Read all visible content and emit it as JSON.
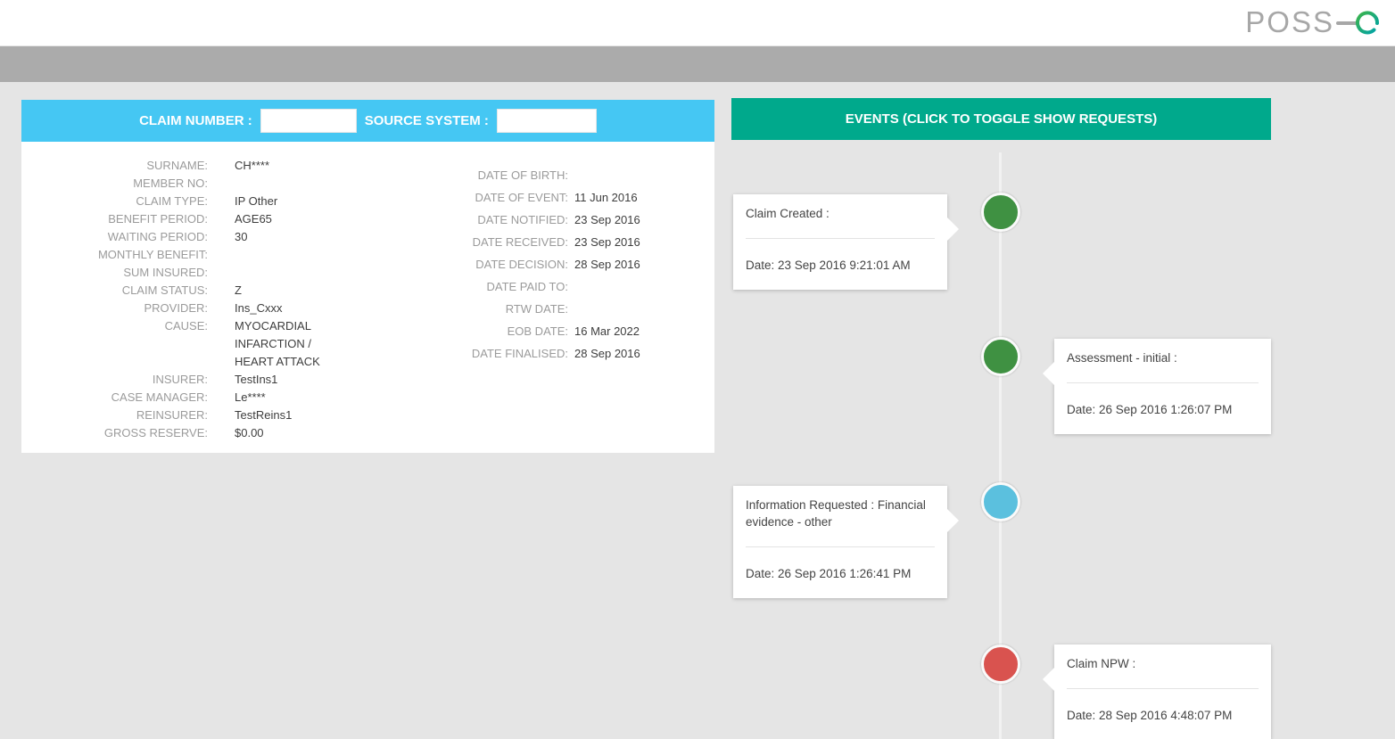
{
  "brand": {
    "wordmark": "POSS",
    "accent_letter": "e"
  },
  "claim_panel": {
    "header": {
      "claim_number_label": "CLAIM NUMBER :",
      "claim_number_value": "",
      "source_system_label": "SOURCE SYSTEM :",
      "source_system_value": ""
    },
    "details_left": [
      {
        "label": "SURNAME:",
        "value": "CH****"
      },
      {
        "label": "MEMBER NO:",
        "value": ""
      },
      {
        "label": "CLAIM TYPE:",
        "value": "IP Other"
      },
      {
        "label": "BENEFIT PERIOD:",
        "value": "AGE65"
      },
      {
        "label": "WAITING PERIOD:",
        "value": "30"
      },
      {
        "label": "MONTHLY BENEFIT:",
        "value": ""
      },
      {
        "label": "SUM INSURED:",
        "value": ""
      },
      {
        "label": "CLAIM STATUS:",
        "value": "Z"
      },
      {
        "label": "PROVIDER:",
        "value": "Ins_Cxxx"
      },
      {
        "label": "CAUSE:",
        "value": "MYOCARDIAL INFARCTION / HEART ATTACK"
      },
      {
        "label": "INSURER:",
        "value": "TestIns1"
      },
      {
        "label": "CASE MANAGER:",
        "value": "Le****"
      },
      {
        "label": "REINSURER:",
        "value": "TestReins1"
      },
      {
        "label": "GROSS RESERVE:",
        "value": "$0.00"
      }
    ],
    "details_right": [
      {
        "label": "DATE OF BIRTH:",
        "value": ""
      },
      {
        "label": "DATE OF EVENT:",
        "value": "11 Jun 2016"
      },
      {
        "label": "DATE NOTIFIED:",
        "value": "23 Sep 2016"
      },
      {
        "label": "DATE RECEIVED:",
        "value": "23 Sep 2016"
      },
      {
        "label": "DATE DECISION:",
        "value": "28 Sep 2016"
      },
      {
        "label": "DATE PAID TO:",
        "value": ""
      },
      {
        "label": "RTW DATE:",
        "value": ""
      },
      {
        "label": "EOB DATE:",
        "value": "16 Mar 2022"
      },
      {
        "label": "DATE FINALISED:",
        "value": "28 Sep 2016"
      }
    ]
  },
  "events_panel": {
    "header": "EVENTS (CLICK TO TOGGLE SHOW REQUESTS)",
    "events": [
      {
        "title": "Claim Created :",
        "date": "Date: 23 Sep 2016 9:21:01 AM",
        "status_color": "#3f9142",
        "side": "left"
      },
      {
        "title": "Assessment - initial :",
        "date": "Date: 26 Sep 2016 1:26:07 PM",
        "status_color": "#3f9142",
        "side": "right"
      },
      {
        "title": "Information Requested : Financial evidence - other",
        "date": "Date: 26 Sep 2016 1:26:41 PM",
        "status_color": "#5bc0de",
        "side": "left"
      },
      {
        "title": "Claim NPW :",
        "date": "Date: 28 Sep 2016 4:48:07 PM",
        "status_color": "#d9534f",
        "side": "right"
      }
    ]
  },
  "colors": {
    "claim_header_bg": "#45c7f3",
    "events_header_bg": "#00a98c",
    "navbar_bg": "#ababab",
    "page_bg": "#e5e5e5",
    "logo_gray": "#a7a7a7",
    "logo_green": "#3cb44a",
    "logo_teal": "#00a3a9",
    "event_green": "#3f9142",
    "event_blue": "#5bc0de",
    "event_red": "#d9534f"
  }
}
